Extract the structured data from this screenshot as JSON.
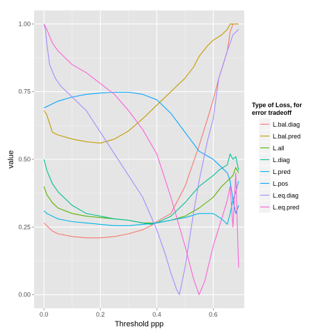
{
  "chart_data": {
    "type": "line",
    "xlabel": "Threshold ppp",
    "ylabel": "value",
    "xlim": [
      -0.035,
      0.71
    ],
    "ylim": [
      -0.05,
      1.05
    ],
    "x_ticks": [
      0.0,
      0.2,
      0.4,
      0.6
    ],
    "x_tick_labels": [
      "0.0",
      "0.2",
      "0.4",
      "0.6"
    ],
    "y_ticks": [
      0.0,
      0.25,
      0.5,
      0.75,
      1.0
    ],
    "y_tick_labels": [
      "0.00",
      "0.25",
      "0.50",
      "0.75",
      "1.00"
    ],
    "grid": true,
    "legend_position": "right",
    "legend_title_lines": [
      "Type of Loss, for",
      "error tradeoff"
    ],
    "panel_bg": "#e5e5e5",
    "grid_color": "#ffffff",
    "series": [
      {
        "name": "L.bal.diag",
        "color": "#f8766d",
        "x": [
          0.0,
          0.01,
          0.03,
          0.05,
          0.1,
          0.15,
          0.2,
          0.25,
          0.3,
          0.35,
          0.38,
          0.4,
          0.45,
          0.5,
          0.55,
          0.58,
          0.6,
          0.62,
          0.65,
          0.66,
          0.67,
          0.69
        ],
        "y": [
          0.265,
          0.255,
          0.235,
          0.225,
          0.215,
          0.21,
          0.21,
          0.215,
          0.225,
          0.24,
          0.255,
          0.27,
          0.3,
          0.4,
          0.55,
          0.65,
          0.72,
          0.8,
          0.9,
          0.97,
          1.0,
          1.0
        ]
      },
      {
        "name": "L.bal.pred",
        "color": "#c49a00",
        "x": [
          0.0,
          0.01,
          0.03,
          0.05,
          0.1,
          0.15,
          0.2,
          0.25,
          0.3,
          0.35,
          0.4,
          0.45,
          0.5,
          0.53,
          0.55,
          0.58,
          0.6,
          0.63,
          0.65,
          0.66,
          0.67,
          0.69
        ],
        "y": [
          0.68,
          0.665,
          0.6,
          0.59,
          0.575,
          0.565,
          0.56,
          0.575,
          0.605,
          0.65,
          0.7,
          0.75,
          0.8,
          0.84,
          0.88,
          0.92,
          0.94,
          0.96,
          0.98,
          1.0,
          1.0,
          1.0
        ]
      },
      {
        "name": "L.all",
        "color": "#53b400",
        "x": [
          0.0,
          0.01,
          0.03,
          0.05,
          0.1,
          0.15,
          0.2,
          0.25,
          0.3,
          0.35,
          0.4,
          0.45,
          0.5,
          0.55,
          0.6,
          0.63,
          0.65,
          0.67,
          0.68,
          0.69
        ],
        "y": [
          0.4,
          0.37,
          0.34,
          0.32,
          0.3,
          0.29,
          0.285,
          0.28,
          0.275,
          0.265,
          0.265,
          0.275,
          0.29,
          0.32,
          0.36,
          0.4,
          0.42,
          0.44,
          0.47,
          0.45
        ]
      },
      {
        "name": "L.diag",
        "color": "#00c094",
        "x": [
          0.0,
          0.01,
          0.03,
          0.05,
          0.1,
          0.15,
          0.2,
          0.25,
          0.3,
          0.35,
          0.38,
          0.4,
          0.45,
          0.5,
          0.55,
          0.6,
          0.62,
          0.65,
          0.66,
          0.67,
          0.68,
          0.69
        ],
        "y": [
          0.5,
          0.46,
          0.41,
          0.38,
          0.33,
          0.3,
          0.29,
          0.28,
          0.275,
          0.265,
          0.26,
          0.265,
          0.29,
          0.34,
          0.4,
          0.44,
          0.46,
          0.48,
          0.52,
          0.5,
          0.51,
          0.46
        ]
      },
      {
        "name": "L.pred",
        "color": "#00b6eb",
        "x": [
          0.0,
          0.01,
          0.03,
          0.05,
          0.1,
          0.15,
          0.2,
          0.25,
          0.3,
          0.35,
          0.4,
          0.45,
          0.5,
          0.55,
          0.6,
          0.63,
          0.65,
          0.66,
          0.67,
          0.68,
          0.69
        ],
        "y": [
          0.31,
          0.3,
          0.29,
          0.28,
          0.27,
          0.265,
          0.26,
          0.255,
          0.255,
          0.26,
          0.265,
          0.275,
          0.285,
          0.3,
          0.3,
          0.28,
          0.26,
          0.3,
          0.35,
          0.38,
          0.42
        ]
      },
      {
        "name": "L.pos",
        "color": "#06a4ff",
        "x": [
          0.0,
          0.01,
          0.03,
          0.05,
          0.1,
          0.15,
          0.2,
          0.25,
          0.3,
          0.35,
          0.4,
          0.45,
          0.5,
          0.55,
          0.6,
          0.63,
          0.65,
          0.66,
          0.67,
          0.68,
          0.69
        ],
        "y": [
          0.69,
          0.695,
          0.705,
          0.715,
          0.73,
          0.74,
          0.745,
          0.748,
          0.748,
          0.74,
          0.72,
          0.67,
          0.6,
          0.53,
          0.5,
          0.47,
          0.45,
          0.42,
          0.35,
          0.3,
          0.33
        ]
      },
      {
        "name": "L.eq.diag",
        "color": "#a58aff",
        "x": [
          0.0,
          0.005,
          0.01,
          0.02,
          0.04,
          0.06,
          0.1,
          0.15,
          0.2,
          0.25,
          0.3,
          0.35,
          0.4,
          0.43,
          0.45,
          0.47,
          0.48,
          0.5,
          0.53,
          0.55,
          0.58,
          0.6,
          0.62,
          0.65,
          0.67,
          0.69
        ],
        "y": [
          1.0,
          0.98,
          0.93,
          0.85,
          0.8,
          0.77,
          0.73,
          0.68,
          0.6,
          0.52,
          0.44,
          0.36,
          0.24,
          0.15,
          0.08,
          0.02,
          0.0,
          0.1,
          0.3,
          0.42,
          0.57,
          0.65,
          0.8,
          0.9,
          0.96,
          0.98
        ]
      },
      {
        "name": "L.eq.pred",
        "color": "#fb61d7",
        "x": [
          0.0,
          0.01,
          0.03,
          0.05,
          0.07,
          0.1,
          0.15,
          0.2,
          0.25,
          0.3,
          0.35,
          0.4,
          0.45,
          0.5,
          0.53,
          0.55,
          0.57,
          0.6,
          0.63,
          0.65,
          0.66,
          0.67,
          0.68,
          0.69
        ],
        "y": [
          1.0,
          0.98,
          0.93,
          0.9,
          0.88,
          0.85,
          0.82,
          0.78,
          0.74,
          0.68,
          0.61,
          0.52,
          0.36,
          0.18,
          0.06,
          0.0,
          0.05,
          0.18,
          0.28,
          0.35,
          0.4,
          0.25,
          0.45,
          0.1
        ]
      }
    ]
  }
}
